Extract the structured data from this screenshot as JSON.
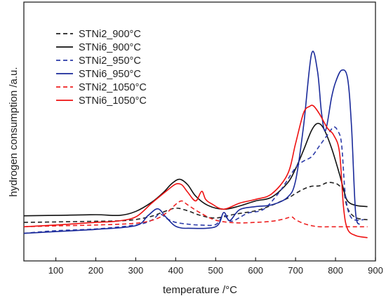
{
  "chart_data": {
    "type": "line",
    "title": "",
    "xlabel": "temperature /°C",
    "ylabel": "hydrogen consumption /a.u.",
    "xlim": [
      20,
      900
    ],
    "ylim": [
      0,
      1
    ],
    "xticks": [
      100,
      200,
      300,
      400,
      500,
      600,
      700,
      800,
      900
    ],
    "xtick_labels": [
      "100",
      "200",
      "300",
      "400",
      "500",
      "600",
      "700",
      "800",
      "900"
    ],
    "y_tick_labels": false,
    "grid": false,
    "legend_position": "top-left",
    "series": [
      {
        "name": "STNi2_900°C",
        "color": "#222222",
        "dash": "dashed",
        "x": [
          20,
          100,
          200,
          260,
          300,
          340,
          370,
          400,
          430,
          460,
          500,
          550,
          600,
          640,
          680,
          700,
          720,
          740,
          760,
          780,
          800,
          810,
          820,
          830,
          850,
          880
        ],
        "y": [
          0.08,
          0.082,
          0.085,
          0.087,
          0.093,
          0.108,
          0.128,
          0.145,
          0.133,
          0.113,
          0.1,
          0.118,
          0.133,
          0.158,
          0.19,
          0.212,
          0.232,
          0.245,
          0.247,
          0.262,
          0.258,
          0.247,
          0.228,
          0.145,
          0.102,
          0.092
        ]
      },
      {
        "name": "STNi6_900°C",
        "color": "#111111",
        "dash": "solid",
        "x": [
          20,
          100,
          200,
          260,
          300,
          340,
          370,
          390,
          410,
          430,
          450,
          480,
          520,
          560,
          600,
          640,
          680,
          700,
          720,
          740,
          755,
          770,
          790,
          810,
          820,
          830,
          850,
          880
        ],
        "y": [
          0.11,
          0.112,
          0.115,
          0.112,
          0.13,
          0.172,
          0.218,
          0.257,
          0.277,
          0.252,
          0.2,
          0.158,
          0.14,
          0.155,
          0.178,
          0.195,
          0.26,
          0.325,
          0.41,
          0.5,
          0.532,
          0.51,
          0.42,
          0.3,
          0.232,
          0.178,
          0.158,
          0.152
        ]
      },
      {
        "name": "STNi2_950°C",
        "color": "#2b3aa8",
        "dash": "dashed",
        "x": [
          20,
          100,
          200,
          300,
          340,
          360,
          380,
          400,
          430,
          460,
          500,
          520,
          540,
          580,
          620,
          660,
          700,
          720,
          740,
          760,
          780,
          795,
          805,
          815,
          825,
          840,
          870
        ],
        "y": [
          0.03,
          0.042,
          0.05,
          0.068,
          0.09,
          0.118,
          0.095,
          0.08,
          0.072,
          0.068,
          0.07,
          0.112,
          0.085,
          0.122,
          0.14,
          0.22,
          0.33,
          0.36,
          0.38,
          0.43,
          0.48,
          0.515,
          0.5,
          0.44,
          0.2,
          0.1,
          0.092
        ]
      },
      {
        "name": "STNi6_950°C",
        "color": "#1a2a9a",
        "dash": "solid",
        "x": [
          20,
          100,
          200,
          300,
          330,
          355,
          375,
          395,
          410,
          430,
          500,
          520,
          535,
          560,
          600,
          640,
          680,
          700,
          720,
          740,
          755,
          765,
          775,
          790,
          800,
          815,
          830,
          840,
          850,
          860
        ],
        "y": [
          0.03,
          0.038,
          0.048,
          0.065,
          0.11,
          0.142,
          0.105,
          0.068,
          0.056,
          0.053,
          0.06,
          0.125,
          0.088,
          0.138,
          0.152,
          0.16,
          0.195,
          0.27,
          0.52,
          0.85,
          0.77,
          0.58,
          0.5,
          0.65,
          0.72,
          0.775,
          0.74,
          0.52,
          0.13,
          0.07
        ]
      },
      {
        "name": "STNi2_1050°C",
        "color": "#ee2222",
        "dash": "dashed",
        "x": [
          20,
          100,
          200,
          300,
          350,
          380,
          400,
          415,
          430,
          460,
          500,
          550,
          600,
          640,
          670,
          690,
          700,
          720,
          740,
          760,
          800,
          880
        ],
        "y": [
          0.06,
          0.064,
          0.068,
          0.076,
          0.095,
          0.128,
          0.162,
          0.178,
          0.16,
          0.125,
          0.09,
          0.078,
          0.08,
          0.085,
          0.095,
          0.105,
          0.092,
          0.075,
          0.065,
          0.06,
          0.06,
          0.06
        ]
      },
      {
        "name": "STNi6_1050°C",
        "color": "#ee1111",
        "dash": "solid",
        "x": [
          20,
          100,
          200,
          250,
          300,
          340,
          380,
          400,
          415,
          430,
          450,
          465,
          475,
          490,
          520,
          560,
          600,
          640,
          680,
          700,
          720,
          735,
          745,
          760,
          780,
          795,
          810,
          820,
          830,
          850,
          880
        ],
        "y": [
          0.06,
          0.068,
          0.08,
          0.085,
          0.105,
          0.168,
          0.228,
          0.255,
          0.252,
          0.218,
          0.178,
          0.222,
          0.185,
          0.165,
          0.14,
          0.168,
          0.185,
          0.21,
          0.3,
          0.44,
          0.58,
          0.61,
          0.612,
          0.575,
          0.51,
          0.48,
          0.4,
          0.15,
          0.05,
          0.02,
          0.01
        ]
      }
    ]
  }
}
